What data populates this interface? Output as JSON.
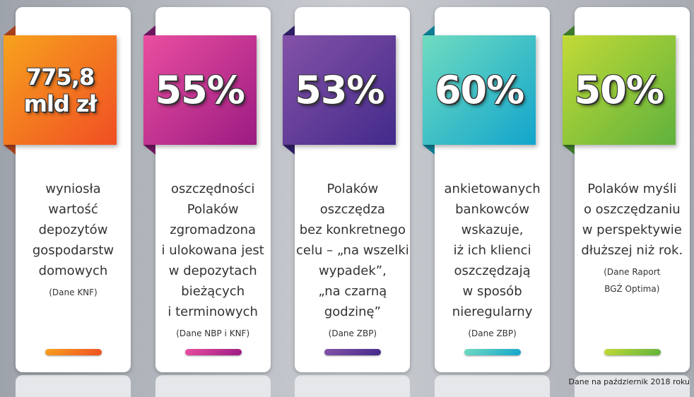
{
  "cards": [
    {
      "value": [
        "775,8",
        "mld zł"
      ],
      "description": [
        "wyniosła",
        "wartość",
        "depozytów",
        "gospodarstw",
        "domowych"
      ],
      "source": [
        "(Dane KNF)"
      ]
    },
    {
      "value": [
        "55%"
      ],
      "description": [
        "oszczędności",
        "Polaków",
        "zgromadzona",
        "i ulokowana jest",
        "w depozytach",
        "bieżących",
        "i terminowych"
      ],
      "source": [
        "(Dane NBP i KNF)"
      ]
    },
    {
      "value": [
        "53%"
      ],
      "description": [
        "Polaków",
        "oszczędza",
        "bez konkretnego",
        "celu – „na wszelki",
        "wypadek”,",
        "„na czarną",
        "godzinę”"
      ],
      "source": [
        "(Dane ZBP)"
      ]
    },
    {
      "value": [
        "60%"
      ],
      "description": [
        "ankietowanych",
        "bankowców",
        "wskazuje,",
        "iż ich klienci",
        "oszczędzają",
        "w sposób",
        "nieregularny"
      ],
      "source": [
        "(Dane ZBP)"
      ]
    },
    {
      "value": [
        "50%"
      ],
      "description": [
        "Polaków myśli",
        "o oszczędzaniu",
        "w perspektywie",
        "dłuższej niż rok."
      ],
      "source": [
        "(Dane Raport",
        "BGŻ Optima)"
      ]
    }
  ],
  "footer": "Dane na październik 2018 roku"
}
